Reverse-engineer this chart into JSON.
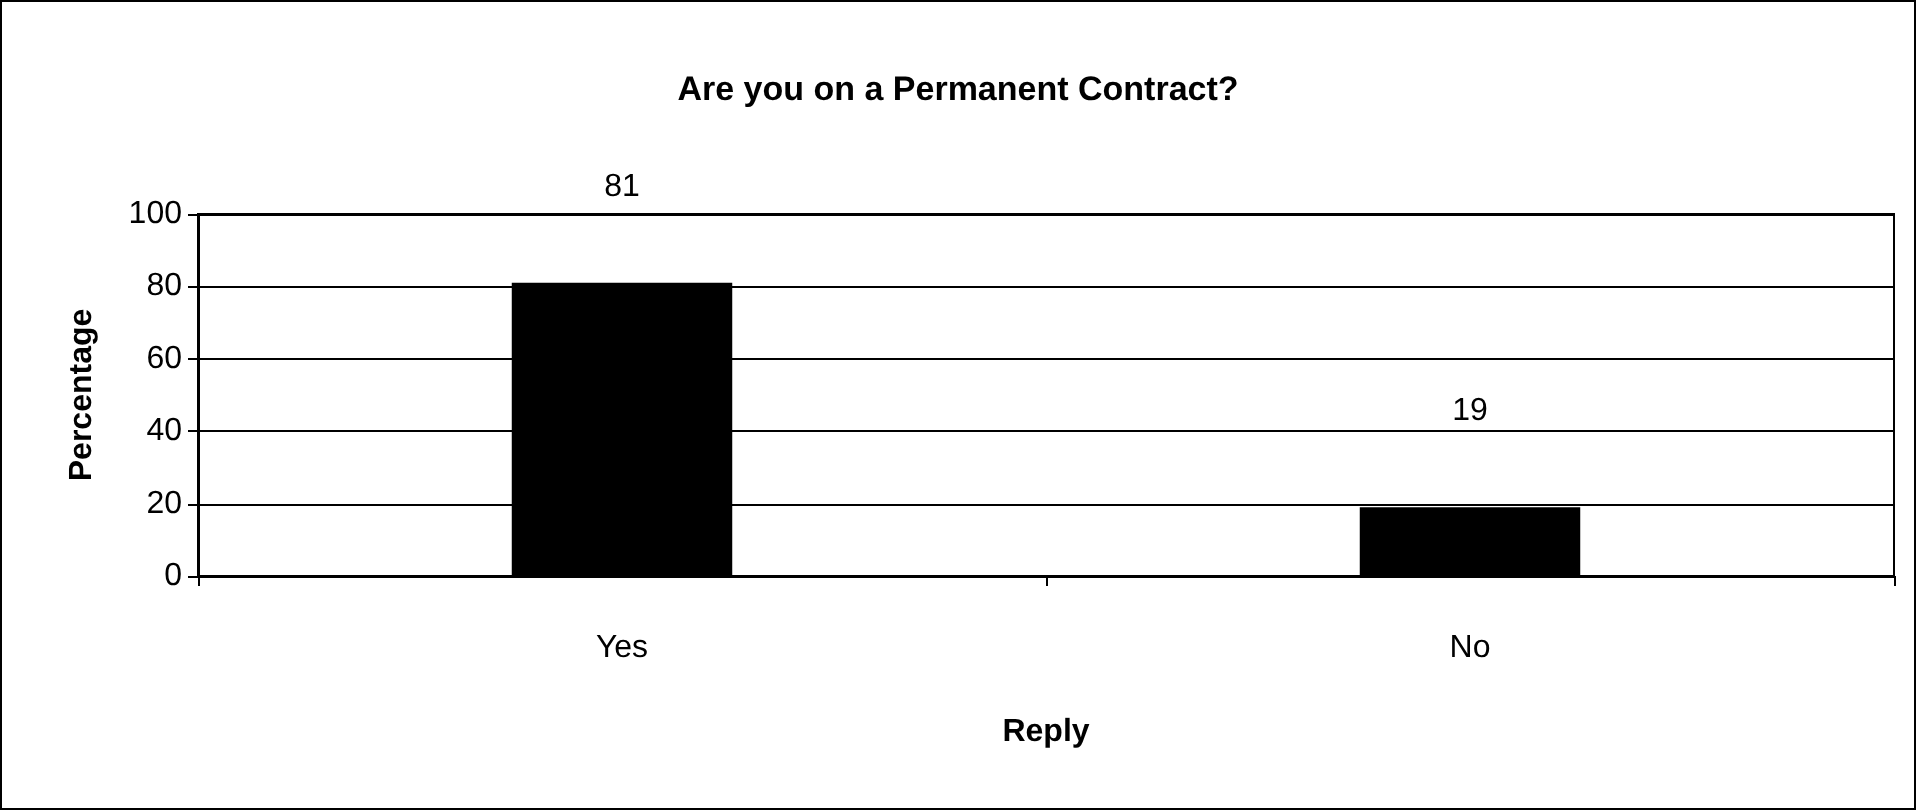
{
  "chart_data": {
    "type": "bar",
    "title": "Are you on a Permanent Contract?",
    "xlabel": "Reply",
    "ylabel": "Percentage",
    "categories": [
      "Yes",
      "No"
    ],
    "values": [
      81,
      19
    ],
    "color": "#000000",
    "ylim": [
      0,
      100
    ],
    "yticks": [
      0,
      20,
      40,
      60,
      80,
      100
    ],
    "grid": "y",
    "data_labels": true
  }
}
